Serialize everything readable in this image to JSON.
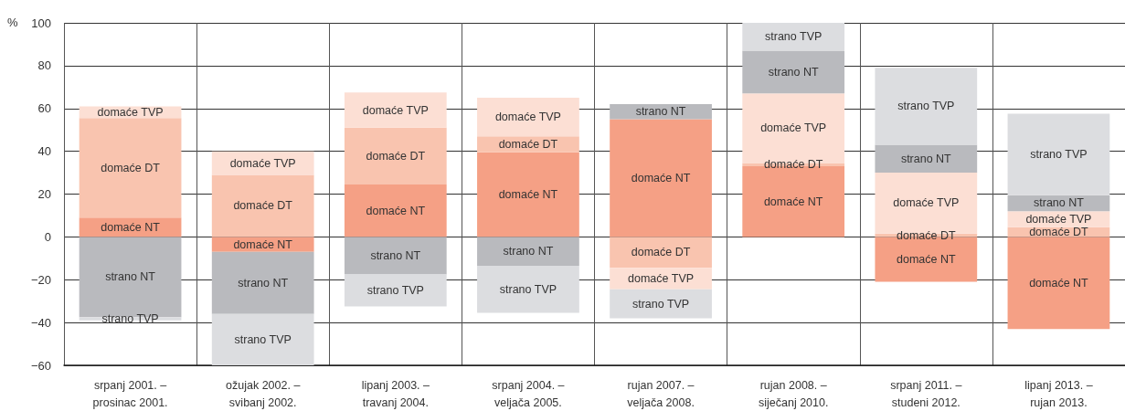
{
  "chart_data": {
    "type": "bar",
    "stacked": true,
    "ylabel": "%",
    "categories": [
      "srpanj 2001. –\nprosinac 2001.",
      "ožujak 2002. –\nsvibanj 2002.",
      "lipanj 2003. –\ntravanj 2004.",
      "srpanj 2004. –\nveljača 2005.",
      "rujan 2007. –\nveljača 2008.",
      "rujan 2008. –\nsiječanj 2010.",
      "srpanj 2011. –\nstudeni 2012.",
      "lipanj 2013. –\nrujan 2013."
    ],
    "series": [
      {
        "name": "domaće NT",
        "color": "#f5a085",
        "values": [
          9,
          -7,
          24.5,
          39.5,
          55,
          33,
          -21,
          -43
        ]
      },
      {
        "name": "domaće DT",
        "color": "#f9c4af",
        "values": [
          46.5,
          29,
          26.5,
          7.5,
          -14.5,
          1.5,
          1.5,
          4.5
        ]
      },
      {
        "name": "domaće TVP",
        "color": "#fcdfd4",
        "values": [
          5.5,
          11,
          16.5,
          18,
          -10,
          32.5,
          28.5,
          7.5
        ]
      },
      {
        "name": "strano NT",
        "color": "#b9babe",
        "values": [
          -37.5,
          -29,
          -17.5,
          -13.5,
          7,
          20,
          13,
          7.5
        ]
      },
      {
        "name": "strano TVP",
        "color": "#dcdde0",
        "values": [
          -1.5,
          -24,
          -15,
          -22,
          -13.5,
          13,
          36,
          38
        ]
      }
    ],
    "ylim": [
      -60,
      100
    ],
    "yticks": [
      {
        "value": -60,
        "label": "−60"
      },
      {
        "value": -40,
        "label": "−40"
      },
      {
        "value": -20,
        "label": "−20"
      },
      0,
      20,
      40,
      60,
      80,
      100
    ],
    "grid": true,
    "legend": false
  }
}
